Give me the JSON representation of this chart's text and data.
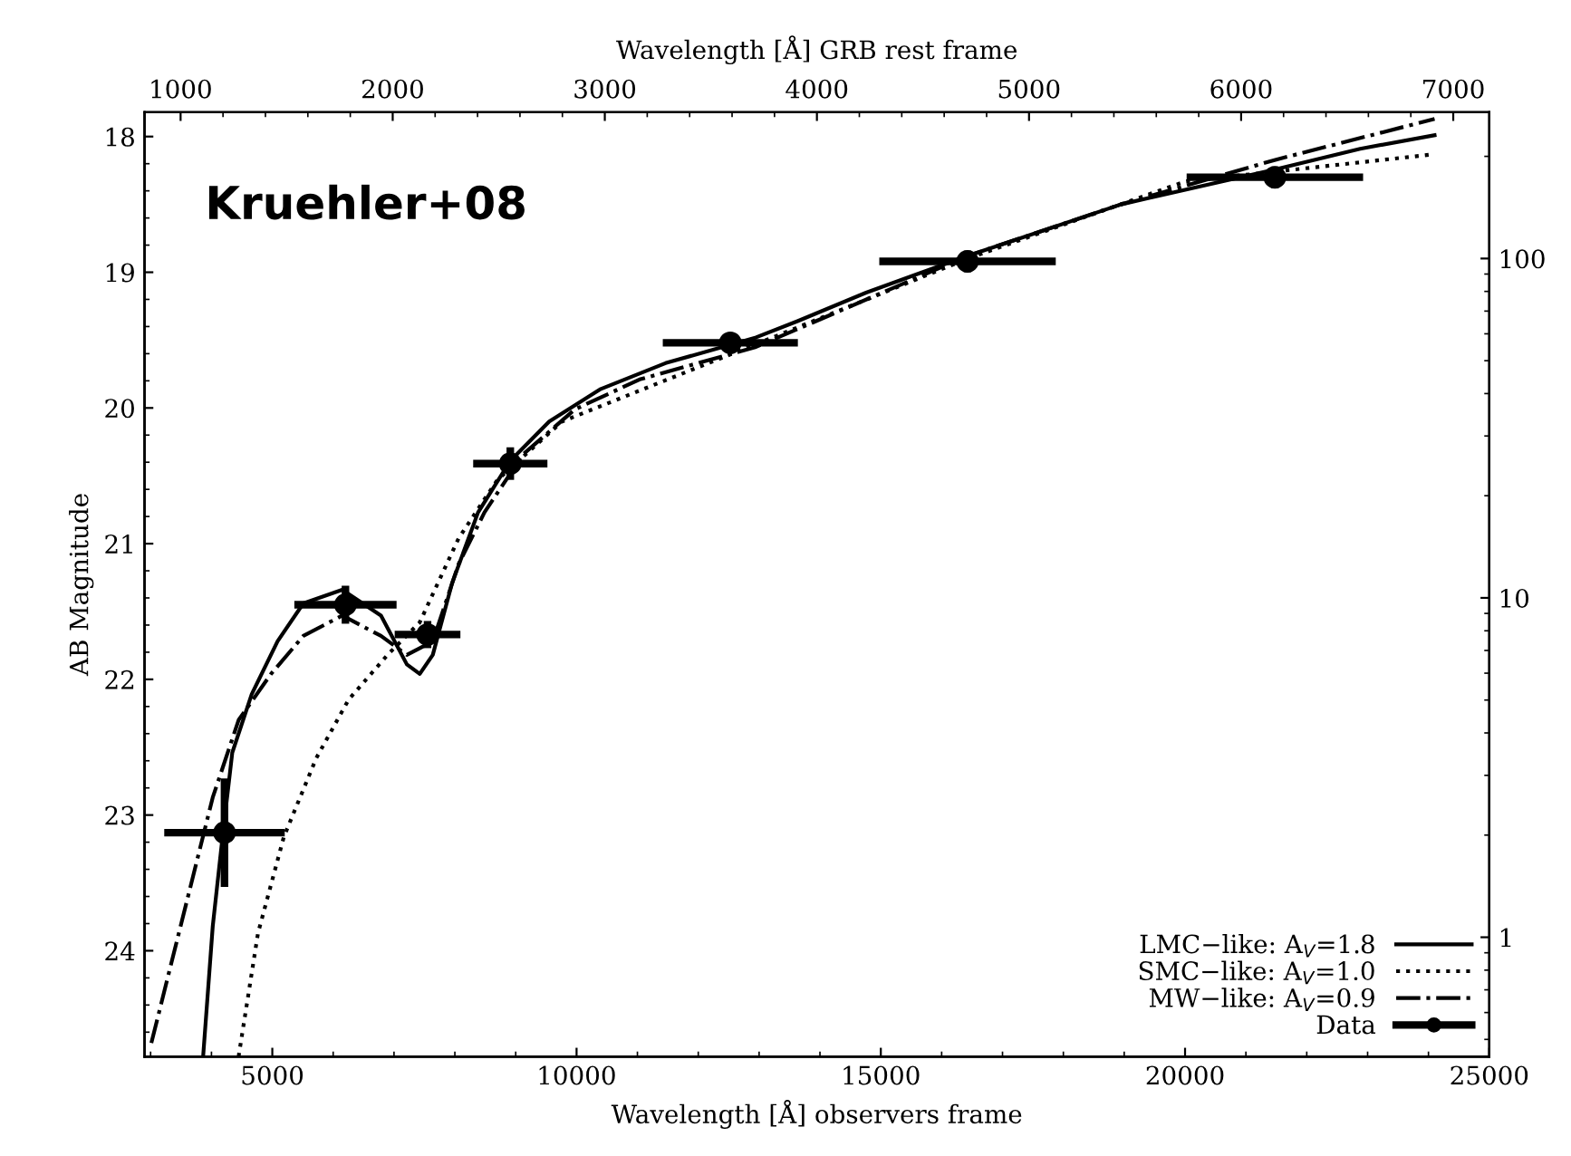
{
  "chart_data": {
    "type": "line",
    "xlabel": "Wavelength [Å] observers frame",
    "ylabel": "AB Magnitude",
    "x2label": "Wavelength [Å] GRB rest frame",
    "annotations": [
      "Kruehler+08"
    ],
    "xlim": [
      2900,
      25000
    ],
    "xticks": [
      5000,
      10000,
      15000,
      20000,
      25000
    ],
    "x2lim": [
      830,
      7170
    ],
    "x2ticks": [
      1000,
      2000,
      3000,
      4000,
      5000,
      6000,
      7000
    ],
    "ylim": [
      24.78,
      17.82
    ],
    "yticks": [
      18,
      19,
      20,
      21,
      22,
      23,
      24
    ],
    "y2lim": [
      0.445,
      270
    ],
    "y2ticks": [
      1,
      10,
      100
    ],
    "log": "y2",
    "grid": false,
    "legend": "bottom right",
    "series": [
      {
        "name": "LMC−like: A$_{V}$=1.8",
        "color": "#000000",
        "line_style": "solid",
        "marker": "none",
        "x": [
          3863,
          4021,
          4182,
          4342,
          4661,
          5086,
          5510,
          6149,
          6786,
          7211,
          7423,
          7637,
          7955,
          8381,
          8911,
          9551,
          10399,
          11462,
          12950,
          13631,
          14759,
          16425,
          18946,
          21497,
          22878,
          24101
        ],
        "values": [
          24.78,
          23.82,
          23.16,
          22.54,
          22.11,
          21.72,
          21.44,
          21.34,
          21.53,
          21.89,
          21.96,
          21.82,
          21.29,
          20.77,
          20.39,
          20.1,
          19.86,
          19.67,
          19.48,
          19.36,
          19.15,
          18.88,
          18.5,
          18.24,
          18.09,
          17.99
        ]
      },
      {
        "name": "SMC−like: A$_{V}$=1.0",
        "color": "#000000",
        "line_style": "dotted",
        "marker": "none",
        "x": [
          4446,
          4765,
          5190,
          5723,
          6253,
          6893,
          7423,
          8062,
          8699,
          9762,
          10824,
          12950,
          16425,
          20009,
          22878,
          24101
        ],
        "values": [
          24.78,
          23.87,
          23.16,
          22.58,
          22.15,
          21.82,
          21.58,
          20.96,
          20.53,
          20.1,
          19.91,
          19.53,
          18.9,
          18.33,
          18.19,
          18.13
        ]
      },
      {
        "name": "MW−like: A$_{V}$=0.9",
        "color": "#000000",
        "line_style": "dashdot",
        "marker": "none",
        "x": [
          3012,
          3598,
          4021,
          4446,
          4979,
          5510,
          6149,
          6786,
          7211,
          7637,
          8062,
          8486,
          9125,
          9974,
          11036,
          12950,
          16425,
          18946,
          21497,
          24101
        ],
        "values": [
          24.68,
          23.63,
          22.87,
          22.3,
          21.96,
          21.68,
          21.53,
          21.68,
          21.82,
          21.72,
          21.15,
          20.77,
          20.34,
          20.01,
          19.79,
          19.55,
          18.88,
          18.5,
          18.17,
          17.87
        ]
      },
      {
        "name": "Data",
        "type": "scatter",
        "color": "#000000",
        "marker": "circle",
        "x": [
          4214,
          6202,
          7551,
          8911,
          12527,
          16425,
          21476
        ],
        "values": [
          23.13,
          21.45,
          21.67,
          20.41,
          19.52,
          18.92,
          18.3
        ],
        "errors": [
          0.4,
          0.14,
          0.1,
          0.12,
          0.05,
          0.08,
          0.08
        ],
        "xerrors": [
          990,
          840,
          540,
          610,
          1110,
          1450,
          1450
        ]
      }
    ]
  }
}
